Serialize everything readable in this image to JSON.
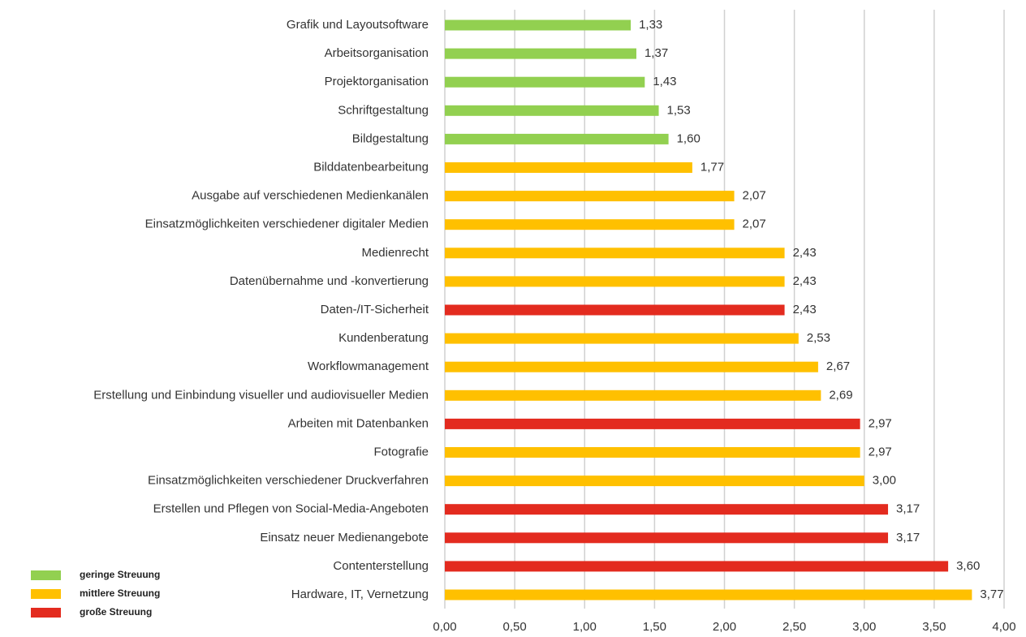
{
  "chart_data": {
    "type": "bar",
    "orientation": "horizontal",
    "categories": [
      "Grafik und Layoutsoftware",
      "Arbeitsorganisation",
      "Projektorganisation",
      "Schriftgestaltung",
      "Bildgestaltung",
      "Bilddatenbearbeitung",
      "Ausgabe auf verschiedenen Medienkanälen",
      "Einsatzmöglichkeiten verschiedener digitaler Medien",
      "Medienrecht",
      "Datenübernahme und -konvertierung",
      "Daten-/IT-Sicherheit",
      "Kundenberatung",
      "Workflowmanagement",
      "Erstellung und Einbindung visueller und audiovisueller Medien",
      "Arbeiten mit Datenbanken",
      "Fotografie",
      "Einsatzmöglichkeiten verschiedener Druckverfahren",
      "Erstellen und Pflegen von Social-Media-Angeboten",
      "Einsatz neuer Medienangebote",
      "Contenterstellung",
      "Hardware, IT, Vernetzung"
    ],
    "series": [
      {
        "name": "geringe Streuung",
        "color": "#92d050",
        "values": [
          1.33,
          1.37,
          1.43,
          1.53,
          1.6,
          null,
          null,
          null,
          null,
          null,
          null,
          null,
          null,
          null,
          null,
          null,
          null,
          null,
          null,
          null,
          null
        ],
        "value_labels": [
          "1,33",
          "1,37",
          "1,43",
          "1,53",
          "1,60",
          null,
          null,
          null,
          null,
          null,
          null,
          null,
          null,
          null,
          null,
          null,
          null,
          null,
          null,
          null,
          null
        ]
      },
      {
        "name": "mittlere Streuung",
        "color": "#ffc000",
        "values": [
          null,
          null,
          null,
          null,
          null,
          1.77,
          2.07,
          2.07,
          2.43,
          2.43,
          null,
          2.53,
          2.67,
          2.69,
          null,
          2.97,
          3.0,
          null,
          null,
          null,
          3.77
        ],
        "value_labels": [
          null,
          null,
          null,
          null,
          null,
          "1,77",
          "2,07",
          "2,07",
          "2,43",
          "2,43",
          null,
          "2,53",
          "2,67",
          "2,69",
          null,
          "2,97",
          "3,00",
          null,
          null,
          null,
          "3,77"
        ]
      },
      {
        "name": "große Streuung",
        "color": "#e32b1f",
        "values": [
          null,
          null,
          null,
          null,
          null,
          null,
          null,
          null,
          null,
          null,
          2.43,
          null,
          null,
          null,
          2.97,
          null,
          null,
          3.17,
          3.17,
          3.6,
          null
        ],
        "value_labels": [
          null,
          null,
          null,
          null,
          null,
          null,
          null,
          null,
          null,
          null,
          "2,43",
          null,
          null,
          null,
          "2,97",
          null,
          null,
          "3,17",
          "3,17",
          "3,60",
          null
        ]
      }
    ],
    "xlim": [
      0,
      4
    ],
    "xticks": [
      {
        "value": 0,
        "label": "0,00"
      },
      {
        "value": 0.5,
        "label": "0,50"
      },
      {
        "value": 1,
        "label": "1,00"
      },
      {
        "value": 1.5,
        "label": "1,50"
      },
      {
        "value": 2,
        "label": "2,00"
      },
      {
        "value": 2.5,
        "label": "2,50"
      },
      {
        "value": 3,
        "label": "3,00"
      },
      {
        "value": 3.5,
        "label": "3,50"
      },
      {
        "value": 4,
        "label": "4,00"
      }
    ],
    "grid": true,
    "legend": "bottom-left"
  }
}
